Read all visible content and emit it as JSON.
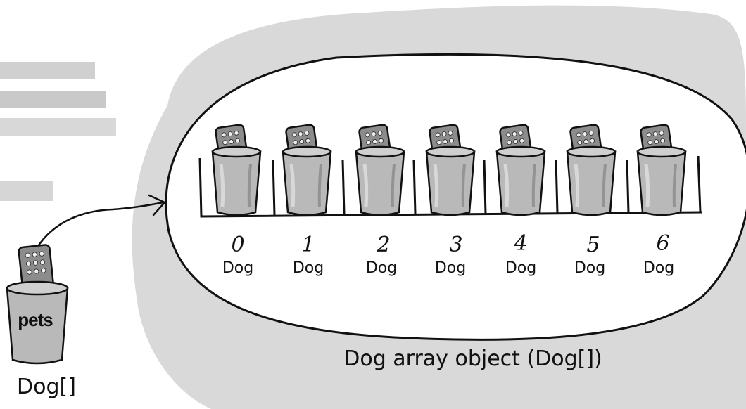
{
  "variable": {
    "label": "pets",
    "type": "Dog[]"
  },
  "array_object": {
    "caption": "Dog array object (Dog[])",
    "slots": [
      {
        "index": "0",
        "type": "Dog"
      },
      {
        "index": "1",
        "type": "Dog"
      },
      {
        "index": "2",
        "type": "Dog"
      },
      {
        "index": "3",
        "type": "Dog"
      },
      {
        "index": "4",
        "type": "Dog"
      },
      {
        "index": "5",
        "type": "Dog"
      },
      {
        "index": "6",
        "type": "Dog"
      }
    ]
  },
  "colors": {
    "heap_background": "#d9d9d9",
    "outline": "#111111",
    "cup_fill": "#b9b9b9",
    "remote_fill": "#8c8c8c",
    "blurred_text": "#d4d4d4"
  },
  "icons": {
    "slot_icon": "cup-with-remote-icon",
    "variable_icon": "cup-with-remote-icon"
  }
}
